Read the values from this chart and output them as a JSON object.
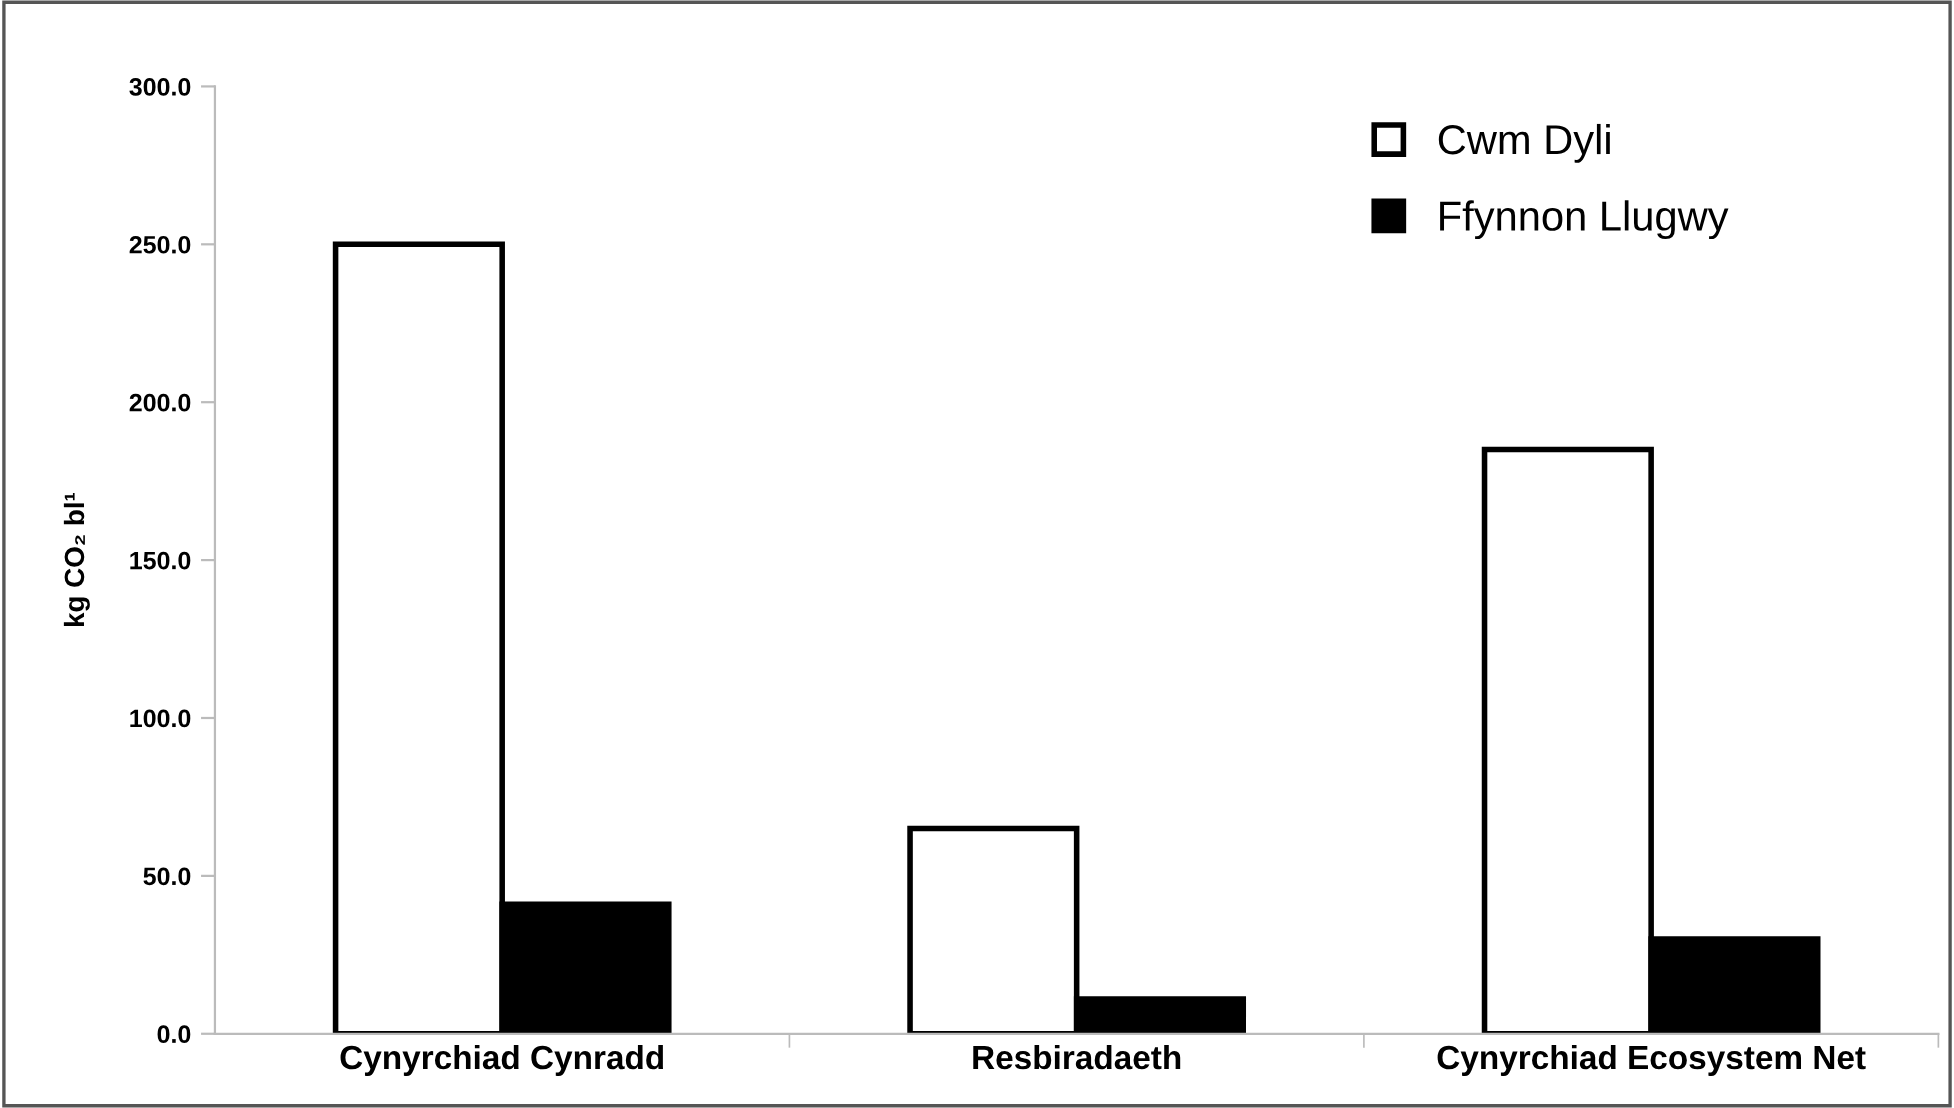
{
  "chart_data": {
    "type": "bar",
    "ylabel": "kg CO₂ bl¹",
    "categories": [
      "Cynyrchiad Cynradd",
      "Resbiradaeth",
      "Cynyrchiad Ecosystem Net"
    ],
    "series": [
      {
        "name": "Cwm Dyli",
        "color": "#ffffff",
        "values": [
          250,
          65,
          185
        ]
      },
      {
        "name": "Ffynnon Llugwy",
        "color": "#000000",
        "values": [
          41,
          11,
          30
        ]
      }
    ],
    "ylim": [
      0,
      300
    ],
    "yticks": [
      {
        "value": 0,
        "label": "0.0"
      },
      {
        "value": 50,
        "label": "50.0"
      },
      {
        "value": 100,
        "label": "100.0"
      },
      {
        "value": 150,
        "label": "150.0"
      },
      {
        "value": 200,
        "label": "200.0"
      },
      {
        "value": 250,
        "label": "250.0"
      },
      {
        "value": 300,
        "label": "300.0"
      }
    ],
    "grid": false,
    "legend": "top right"
  }
}
